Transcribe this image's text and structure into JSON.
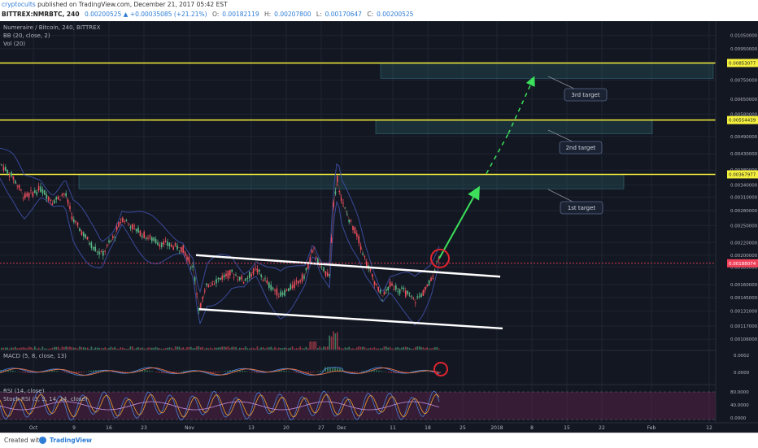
{
  "header": {
    "author": "cryptocults",
    "published_text": "published on TradingView.com, December 21, 2017 05:42 EST",
    "symbol": "BITTREX:NMRBTC, 240",
    "change": "0.00200525 ▲ +0.00035085 (+21.21%)",
    "o_label": "O:",
    "o_value": "0.00182119",
    "h_label": "H:",
    "h_value": "0.00207800",
    "l_label": "L:",
    "l_value": "0.00170647",
    "c_label": "C:",
    "c_value": "0.00200525"
  },
  "legend": {
    "title": "Numeraire / Bitcoin, 240, BITTREX",
    "bb": "BB (20, close, 2)",
    "vol": "Vol (20)",
    "macd": "MACD (5, 8, close, 13)",
    "rsi": "RSI (14, close)",
    "stoch": "Stoch RSI (3, 3, 14, 14, close)"
  },
  "footer": {
    "created": "Created with",
    "brand": "TradingView"
  },
  "colors": {
    "background": "#131722",
    "grid": "#1e2433",
    "up": "#53b987",
    "down": "#eb4d5c",
    "target_line": "#f5f03d",
    "target_zone": "rgba(46,120,120,0.25)",
    "channel": "#ffffff",
    "arrow": "#3ce05a",
    "circle": "#e0242f",
    "bb": "#3a4a9a",
    "current_price": "#f0415a",
    "macd_line": "#4a7fd4",
    "signal_line": "#e8734a",
    "rsi_line": "#c48de0",
    "stoch_k": "#4a7fd4",
    "stoch_d": "#f0a030"
  },
  "chart_data": {
    "type": "candlestick",
    "symbol": "NMRBTC",
    "y_scale": "log",
    "x_ticks": [
      "Oct",
      "9",
      "16",
      "23",
      "Nov",
      "13",
      "20",
      "27",
      "Dec",
      "11",
      "18",
      "25",
      "2018",
      "8",
      "15",
      "22",
      "Feb",
      "12"
    ],
    "y_ticks": [
      "0.01050000",
      "0.00950000",
      "0.00850000",
      "0.00750000",
      "0.00650000",
      "0.00580000",
      "0.00490000",
      "0.00430000",
      "0.00380000",
      "0.00340000",
      "0.00310000",
      "0.00280000",
      "0.00250000",
      "0.00220000",
      "0.00200000",
      "0.00183000",
      "0.00160000",
      "0.00145000",
      "0.00131000",
      "0.00117000",
      "0.00106000"
    ],
    "macd_ticks": [
      "0.0002",
      "0.0000"
    ],
    "rsi_ticks": [
      "80.0000",
      "40.0000",
      "0.0000"
    ],
    "price_labels": [
      {
        "value": "0.00853077",
        "kind": "target"
      },
      {
        "value": "0.00554439",
        "kind": "target"
      },
      {
        "value": "0.00367977",
        "kind": "target"
      },
      {
        "value": "0.00188074",
        "kind": "current"
      }
    ],
    "targets": [
      {
        "label": "3rd target",
        "price": 0.00853077
      },
      {
        "label": "2nd target",
        "price": 0.00554439
      },
      {
        "label": "1st target",
        "price": 0.00367977
      }
    ],
    "price_path": [
      [
        0,
        0.004
      ],
      [
        16,
        0.0036
      ],
      [
        30,
        0.0031
      ],
      [
        50,
        0.0033
      ],
      [
        65,
        0.003
      ],
      [
        80,
        0.0032
      ],
      [
        90,
        0.0026
      ],
      [
        100,
        0.0024
      ],
      [
        110,
        0.0022
      ],
      [
        125,
        0.002
      ],
      [
        140,
        0.0023
      ],
      [
        150,
        0.00265
      ],
      [
        165,
        0.00245
      ],
      [
        180,
        0.0023
      ],
      [
        195,
        0.0022
      ],
      [
        210,
        0.00215
      ],
      [
        225,
        0.0021
      ],
      [
        238,
        0.0018
      ],
      [
        245,
        0.00132
      ],
      [
        255,
        0.0016
      ],
      [
        270,
        0.00168
      ],
      [
        285,
        0.00175
      ],
      [
        300,
        0.00165
      ],
      [
        315,
        0.0018
      ],
      [
        330,
        0.0016
      ],
      [
        345,
        0.00148
      ],
      [
        360,
        0.00158
      ],
      [
        375,
        0.00172
      ],
      [
        385,
        0.0021
      ],
      [
        395,
        0.0018
      ],
      [
        405,
        0.00172
      ],
      [
        410,
        0.0029
      ],
      [
        415,
        0.0036
      ],
      [
        420,
        0.003
      ],
      [
        430,
        0.0026
      ],
      [
        440,
        0.0023
      ],
      [
        450,
        0.0019
      ],
      [
        460,
        0.00165
      ],
      [
        470,
        0.00145
      ],
      [
        480,
        0.0016
      ],
      [
        490,
        0.00155
      ],
      [
        500,
        0.0015
      ],
      [
        510,
        0.00142
      ],
      [
        520,
        0.0015
      ],
      [
        530,
        0.00165
      ],
      [
        540,
        0.002
      ]
    ],
    "channel": {
      "upper": [
        {
          "x": 241,
          "price": 0.002
        },
        {
          "x": 615,
          "price": 0.0017
        }
      ],
      "lower": [
        {
          "x": 245,
          "price": 0.00133
        },
        {
          "x": 618,
          "price": 0.00115
        }
      ]
    },
    "projection": [
      {
        "from": {
          "x": 540,
          "price": 0.00195
        },
        "to": {
          "x": 588,
          "price": 0.0033
        },
        "style": "solid"
      },
      {
        "from": {
          "x": 598,
          "price": 0.0037
        },
        "to": {
          "x": 625,
          "price": 0.005
        },
        "style": "dashed"
      },
      {
        "from": {
          "x": 625,
          "price": 0.005
        },
        "to": {
          "x": 656,
          "price": 0.0076
        },
        "style": "dashed"
      }
    ]
  }
}
